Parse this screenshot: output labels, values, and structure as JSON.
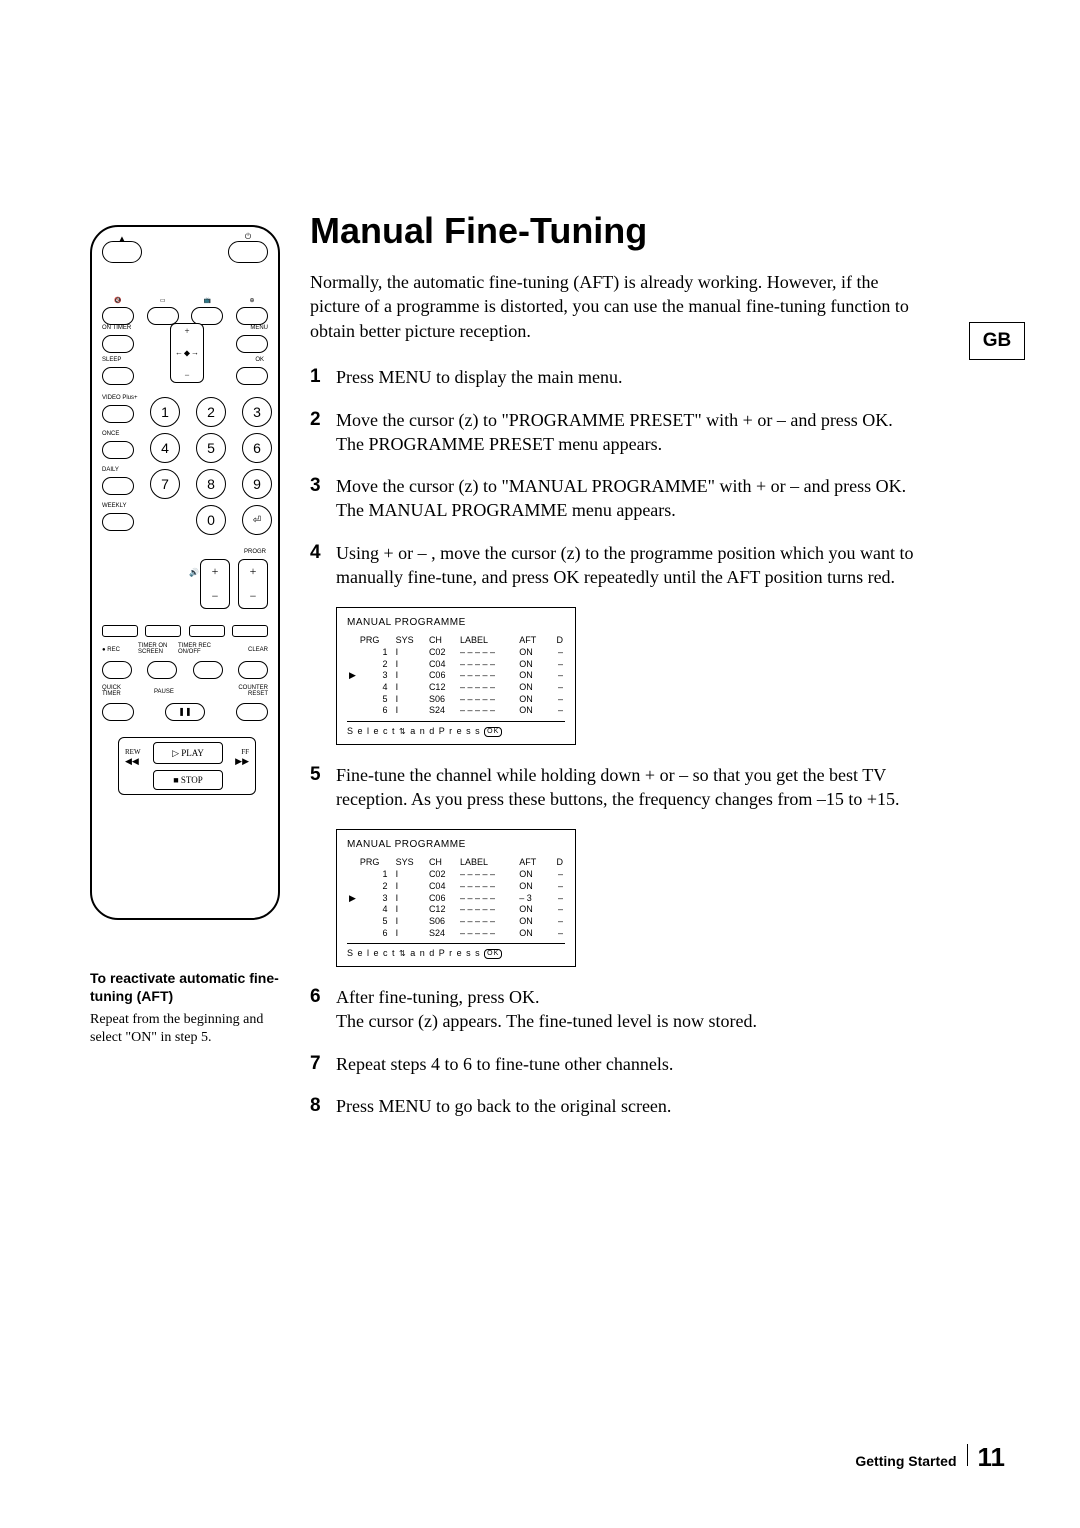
{
  "lang_tab": "GB",
  "title": "Manual Fine-Tuning",
  "intro": "Normally, the automatic fine-tuning (AFT) is already working.  However, if the picture of a programme is distorted, you can use the manual fine-tuning function to obtain better picture reception.",
  "steps": {
    "s1": {
      "n": "1",
      "t": "Press MENU to display the main menu."
    },
    "s2": {
      "n": "2",
      "t": "Move the cursor (z) to \"PROGRAMME PRESET\" with +   or –   and press OK.\nThe PROGRAMME PRESET menu appears."
    },
    "s3": {
      "n": "3",
      "t": "Move the cursor (z) to \"MANUAL PROGRAMME\" with +   or –   and press OK.\nThe MANUAL PROGRAMME menu appears."
    },
    "s4": {
      "n": "4",
      "t": "Using +   or –  , move the cursor (z) to the programme position which you want to manually fine-tune, and press OK repeatedly until the AFT position turns red."
    },
    "s5": {
      "n": "5",
      "t": "Fine-tune the channel while holding down +   or –   so that you get the best TV reception.  As you press these buttons, the frequency changes from –15 to +15."
    },
    "s6": {
      "n": "6",
      "t": "After fine-tuning, press OK.\nThe cursor (z) appears.  The fine-tuned level is now stored."
    },
    "s7": {
      "n": "7",
      "t": "Repeat steps 4 to 6 to fine-tune other channels."
    },
    "s8": {
      "n": "8",
      "t": "Press MENU to go back to the original screen."
    }
  },
  "sidebar": {
    "heading": "To reactivate automatic fine-tuning (AFT)",
    "body": "Repeat from the beginning and select \"ON\" in step 5."
  },
  "osd_common": {
    "title": "MANUAL  PROGRAMME",
    "headers": {
      "prg": "PRG",
      "sys": "SYS",
      "ch": "CH",
      "label": "LABEL",
      "aft": "AFT",
      "d": "D"
    },
    "footer_prefix": "S e l e c t",
    "footer_mid": "a n d  P r e s s",
    "ok": "OK"
  },
  "osd1_rows": [
    {
      "cur": "",
      "prg": "1",
      "sys": "I",
      "ch": "C02",
      "label": "– – – – –",
      "aft": "ON",
      "d": "–"
    },
    {
      "cur": "",
      "prg": "2",
      "sys": "I",
      "ch": "C04",
      "label": "– – – – –",
      "aft": "ON",
      "d": "–"
    },
    {
      "cur": "▶",
      "prg": "3",
      "sys": "I",
      "ch": "C06",
      "label": "– – – – –",
      "aft": "ON",
      "d": "–"
    },
    {
      "cur": "",
      "prg": "4",
      "sys": "I",
      "ch": "C12",
      "label": "– – – – –",
      "aft": "ON",
      "d": "–"
    },
    {
      "cur": "",
      "prg": "5",
      "sys": "I",
      "ch": "S06",
      "label": "– – – – –",
      "aft": "ON",
      "d": "–"
    },
    {
      "cur": "",
      "prg": "6",
      "sys": "I",
      "ch": "S24",
      "label": "– – – – –",
      "aft": "ON",
      "d": "–"
    }
  ],
  "osd2_rows": [
    {
      "cur": "",
      "prg": "1",
      "sys": "I",
      "ch": "C02",
      "label": "– – – – –",
      "aft": "ON",
      "d": "–"
    },
    {
      "cur": "",
      "prg": "2",
      "sys": "I",
      "ch": "C04",
      "label": "– – – – –",
      "aft": "ON",
      "d": "–"
    },
    {
      "cur": "▶",
      "prg": "3",
      "sys": "I",
      "ch": "C06",
      "label": "– – – – –",
      "aft": "– 3",
      "d": "–"
    },
    {
      "cur": "",
      "prg": "4",
      "sys": "I",
      "ch": "C12",
      "label": "– – – – –",
      "aft": "ON",
      "d": "–"
    },
    {
      "cur": "",
      "prg": "5",
      "sys": "I",
      "ch": "S06",
      "label": "– – – – –",
      "aft": "ON",
      "d": "–"
    },
    {
      "cur": "",
      "prg": "6",
      "sys": "I",
      "ch": "S24",
      "label": "– – – – –",
      "aft": "ON",
      "d": "–"
    }
  ],
  "remote_labels": {
    "on_timer": "ON TIMER",
    "menu": "MENU",
    "sleep": "SLEEP",
    "ok": "OK",
    "videoplus": "VIDEO Plus+",
    "once": "ONCE",
    "daily": "DAILY",
    "weekly": "WEEKLY",
    "progr": "PROGR",
    "rec": "REC",
    "timer_on_screen": "TIMER ON SCREEN",
    "timer_rec_onoff": "TIMER REC ON/OFF",
    "clear": "CLEAR",
    "quick_timer": "QUICK TIMER",
    "pause": "PAUSE",
    "counter_reset": "COUNTER RESET",
    "play": "PLAY",
    "rew": "REW",
    "ff": "FF",
    "stop": "STOP"
  },
  "numbers": {
    "n1": "1",
    "n2": "2",
    "n3": "3",
    "n4": "4",
    "n5": "5",
    "n6": "6",
    "n7": "7",
    "n8": "8",
    "n9": "9",
    "n0": "0"
  },
  "footer": {
    "section": "Getting Started",
    "page": "11"
  },
  "colors": {
    "text": "#000000",
    "bg": "#ffffff"
  }
}
